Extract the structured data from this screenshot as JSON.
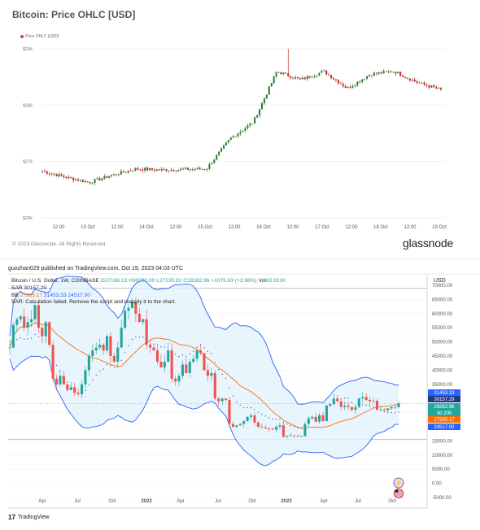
{
  "glassnode": {
    "title": "Bitcoin: Price OHLC [USD]",
    "legend": "Price OHLC [USD]",
    "copyright": "© 2023 Glassnode. All Rights Reserved.",
    "brand": "glassnode",
    "colors": {
      "up": "#2e7d32",
      "down": "#c62828",
      "accent": "#e53935"
    }
  },
  "tradingview": {
    "header": "guozhan029 published on TradingView.com, Oct 19, 2023 04:03 UTC",
    "symbol_line": "Bitcoin / U.S. Dollar, 1W, COINBASE",
    "ohlc": {
      "o": "O27186.13",
      "h": "H30000.00",
      "l": "L27135.92",
      "c": "C28262.96",
      "chg": "+1076.83 (+3.96%)",
      "vol": "Vol",
      "vol_value": "63.931K"
    },
    "sar_line": {
      "label": "SAR",
      "value": "30157.29"
    },
    "bb_line": {
      "label": "BB",
      "v1": "27985.17",
      "v2": "31453.33",
      "v3": "24517.00"
    },
    "sar_error": "SAR: Calculation failed. Remove the script and reapply it to the chart.",
    "currency": "USD",
    "brand": "TradingView",
    "brand_logo": "17",
    "price_badges": [
      {
        "text": "31453.33",
        "color": "#2962ff"
      },
      {
        "text": "30157.29",
        "color": "#1e3a8a"
      },
      {
        "text": "28262.96",
        "color": "#26a69a"
      },
      {
        "text": "3d 20h",
        "color": "#26a69a"
      },
      {
        "text": "27985.17",
        "color": "#ff6d00"
      },
      {
        "text": "24517.00",
        "color": "#2962ff"
      }
    ],
    "icon_names": [
      "lightning-icon",
      "us-flag-icon"
    ],
    "colors": {
      "up": "#26a69a",
      "down": "#ef5350",
      "bb_band": "#2962ff",
      "bb_fill": "#e3f2fd",
      "basis": "#ff6d00"
    }
  },
  "chart_data": [
    {
      "type": "candlestick",
      "title": "Bitcoin: Price OHLC [USD]",
      "series": [
        {
          "name": "Price OHLC [USD]"
        }
      ],
      "x_tick_labels": [
        "12:00",
        "13 Oct",
        "12:00",
        "14 Oct",
        "12:00",
        "15 Oct",
        "12:00",
        "16 Oct",
        "12:00",
        "17 Oct",
        "12:00",
        "18 Oct",
        "12:00",
        "19 Oct"
      ],
      "y_tick_labels": [
        "$29k",
        "$28k",
        "$27k",
        "$26k"
      ],
      "ylim": [
        26000,
        29000
      ],
      "grid": true,
      "ohlc_close_path": [
        [
          "12 Oct 00:00",
          26830
        ],
        [
          "12 Oct 12:00",
          26720
        ],
        [
          "13 Oct 00:00",
          26630
        ],
        [
          "13 Oct 12:00",
          26760
        ],
        [
          "14 Oct 00:00",
          26870
        ],
        [
          "14 Oct 12:00",
          26850
        ],
        [
          "15 Oct 00:00",
          26860
        ],
        [
          "15 Oct 12:00",
          26870
        ],
        [
          "16 Oct 00:00",
          27400
        ],
        [
          "16 Oct 06:00",
          27700
        ],
        [
          "16 Oct 12:00",
          28600
        ],
        [
          "16 Oct 18:00",
          28450
        ],
        [
          "17 Oct 00:00",
          28600
        ],
        [
          "17 Oct 12:00",
          28300
        ],
        [
          "18 Oct 00:00",
          28550
        ],
        [
          "18 Oct 06:00",
          28600
        ],
        [
          "18 Oct 12:00",
          28400
        ],
        [
          "19 Oct 00:00",
          28270
        ]
      ],
      "max_high": 29000
    },
    {
      "type": "candlestick",
      "title": "Bitcoin / U.S. Dollar, 1W, COINBASE",
      "x_tick_labels": [
        "Apr",
        "Jul",
        "Oct",
        "2022",
        "Apr",
        "Jul",
        "Oct",
        "2023",
        "Apr",
        "Jul",
        "Oct"
      ],
      "y_tick_labels": [
        "70000.00",
        "65000.00",
        "60000.00",
        "55000.00",
        "50000.00",
        "45000.00",
        "40000.00",
        "35000.00",
        "30000.00",
        "25000.00",
        "20000.00",
        "15000.00",
        "10000.00",
        "5000.00",
        "0.00",
        "-5000.00"
      ],
      "ylim": [
        -5000,
        70000
      ],
      "series": [
        {
          "name": "Bitcoin / U.S. Dollar, 1W, COINBASE",
          "closes": [
            48000,
            56000,
            58000,
            59000,
            55000,
            57000,
            58000,
            63000,
            55000,
            52000,
            57000,
            49000,
            37000,
            35000,
            38000,
            35000,
            33000,
            34000,
            32000,
            31500,
            35000,
            40000,
            45000,
            47000,
            48000,
            49000,
            47000,
            52000,
            45000,
            43000,
            48000,
            55000,
            61000,
            62000,
            64000,
            60000,
            57000,
            58000,
            49000,
            48000,
            47000,
            43000,
            41000,
            43000,
            47000,
            37000,
            36000,
            38000,
            42000,
            39000,
            43000,
            44000,
            47000,
            46000,
            40000,
            38000,
            39000,
            30000,
            29000,
            30000,
            29500,
            21000,
            20000,
            20500,
            21000,
            22000,
            23500,
            24000,
            21500,
            20000,
            19800,
            19500,
            19200,
            19000,
            20000,
            20500,
            16500,
            16800,
            17000,
            16800,
            16600,
            16700,
            21000,
            23000,
            23500,
            21800,
            24000,
            22000,
            27500,
            28000,
            30000,
            29000,
            27000,
            27500,
            27000,
            26000,
            27000,
            30000,
            30500,
            29500,
            29000,
            29200,
            26000,
            26100,
            25800,
            26500,
            27000,
            26900,
            28262.96
          ]
        },
        {
          "name": "BB",
          "upper_last": 31453.33,
          "basis_last": 27985.17,
          "lower_last": 24517.0
        },
        {
          "name": "SAR",
          "last": 30157.29
        }
      ],
      "grid": true
    }
  ]
}
